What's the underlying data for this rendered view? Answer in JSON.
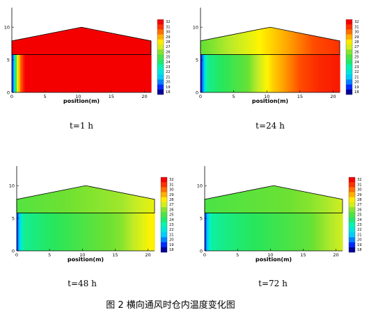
{
  "figure": {
    "caption": "图 2 横向通风时仓内温度变化图"
  },
  "chart_data": [
    {
      "type": "heatmap",
      "time_label": "t=1 h",
      "xlabel": "position(m)",
      "xlim": [
        0,
        21
      ],
      "ylim": [
        0,
        13
      ],
      "x_ticks": [
        0,
        5,
        10,
        15,
        20
      ],
      "y_ticks": [
        0,
        5,
        10
      ],
      "colorbar_levels": [
        32,
        31,
        30,
        29,
        28,
        27,
        26,
        25,
        24,
        23,
        22,
        21,
        20,
        19,
        18
      ],
      "grain_surface_height": 5.8,
      "roof_profile": [
        [
          0,
          7.9
        ],
        [
          10.5,
          10
        ],
        [
          21,
          7.9
        ]
      ],
      "head_temp": 32,
      "grain_temp_profile": [
        [
          0,
          18
        ],
        [
          0.4,
          22
        ],
        [
          0.8,
          27
        ],
        [
          1.3,
          30
        ],
        [
          2,
          32
        ],
        [
          21,
          32
        ]
      ]
    },
    {
      "type": "heatmap",
      "time_label": "t=24 h",
      "xlabel": "position(m)",
      "xlim": [
        0,
        21
      ],
      "ylim": [
        0,
        13
      ],
      "x_ticks": [
        0,
        5,
        10,
        15,
        20
      ],
      "y_ticks": [
        0,
        5,
        10
      ],
      "colorbar_levels": [
        32,
        31,
        30,
        29,
        28,
        27,
        26,
        25,
        24,
        23,
        22,
        21,
        20,
        19,
        18
      ],
      "grain_surface_height": 5.8,
      "roof_profile": [
        [
          0,
          7.9
        ],
        [
          10.5,
          10
        ],
        [
          21,
          7.9
        ]
      ],
      "head_temp_profile": [
        [
          0,
          25.5
        ],
        [
          4,
          26.5
        ],
        [
          8,
          27.5
        ],
        [
          11,
          28.5
        ],
        [
          14,
          29.5
        ],
        [
          17,
          30.5
        ],
        [
          21,
          31
        ]
      ],
      "grain_temp_profile": [
        [
          0,
          18
        ],
        [
          0.5,
          21
        ],
        [
          1,
          23.5
        ],
        [
          4,
          24.5
        ],
        [
          7,
          25.5
        ],
        [
          9,
          27
        ],
        [
          11,
          28.5
        ],
        [
          13,
          29.5
        ],
        [
          15,
          30.5
        ],
        [
          18,
          31.2
        ],
        [
          21,
          31.5
        ]
      ]
    },
    {
      "type": "heatmap",
      "time_label": "t=48 h",
      "xlabel": "position(m)",
      "xlim": [
        0,
        21
      ],
      "ylim": [
        0,
        13
      ],
      "x_ticks": [
        0,
        5,
        10,
        15,
        20
      ],
      "y_ticks": [
        0,
        5,
        10
      ],
      "colorbar_levels": [
        32,
        31,
        30,
        29,
        28,
        27,
        26,
        25,
        24,
        23,
        22,
        21,
        20,
        19,
        18
      ],
      "grain_surface_height": 5.8,
      "roof_profile": [
        [
          0,
          7.9
        ],
        [
          10.5,
          10
        ],
        [
          21,
          7.9
        ]
      ],
      "head_temp_profile": [
        [
          0,
          25.2
        ],
        [
          6,
          25.6
        ],
        [
          12,
          26
        ],
        [
          16,
          26.3
        ],
        [
          19,
          27
        ],
        [
          21,
          27.4
        ]
      ],
      "grain_temp_profile": [
        [
          0,
          18.5
        ],
        [
          0.5,
          21.5
        ],
        [
          1,
          23.4
        ],
        [
          4,
          24
        ],
        [
          7,
          24.5
        ],
        [
          10,
          25
        ],
        [
          13,
          25.5
        ],
        [
          16,
          26
        ],
        [
          18.5,
          27
        ],
        [
          21,
          28
        ]
      ]
    },
    {
      "type": "heatmap",
      "time_label": "t=72 h",
      "xlabel": "position(m)",
      "xlim": [
        0,
        21
      ],
      "ylim": [
        0,
        13
      ],
      "x_ticks": [
        0,
        5,
        10,
        15,
        20
      ],
      "y_ticks": [
        0,
        5,
        10
      ],
      "colorbar_levels": [
        32,
        31,
        30,
        29,
        28,
        27,
        26,
        25,
        24,
        23,
        22,
        21,
        20,
        19,
        18
      ],
      "grain_surface_height": 5.8,
      "roof_profile": [
        [
          0,
          7.9
        ],
        [
          10.5,
          10
        ],
        [
          21,
          7.9
        ]
      ],
      "head_temp_profile": [
        [
          0,
          25
        ],
        [
          6,
          25.3
        ],
        [
          12,
          25.6
        ],
        [
          16,
          26
        ],
        [
          19,
          26.5
        ],
        [
          21,
          27
        ]
      ],
      "grain_temp_profile": [
        [
          0,
          18.5
        ],
        [
          0.5,
          21.5
        ],
        [
          1,
          23.2
        ],
        [
          4,
          23.8
        ],
        [
          7,
          24.2
        ],
        [
          10,
          24.6
        ],
        [
          13,
          25
        ],
        [
          16,
          25.5
        ],
        [
          18.5,
          26.3
        ],
        [
          21,
          27
        ]
      ]
    }
  ]
}
